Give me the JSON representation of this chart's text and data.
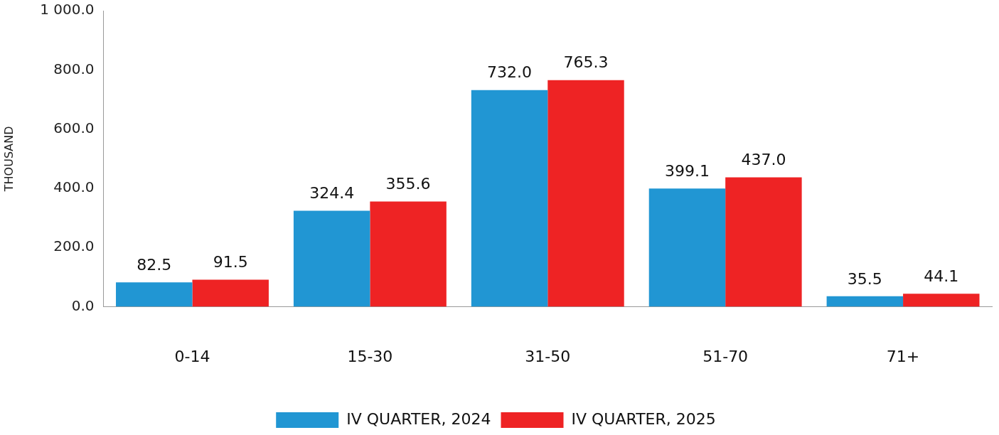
{
  "chart_data": {
    "type": "bar",
    "ylabel": "THOUSAND",
    "categories": [
      "0-14",
      "15-30",
      "31-50",
      "51-70",
      "71+"
    ],
    "series": [
      {
        "name": "IV QUARTER, 2024",
        "color": "#2196d3",
        "values": [
          82.5,
          324.4,
          732.0,
          399.1,
          35.5
        ],
        "value_labels": [
          "82.5",
          "324.4",
          "732.0",
          "399.1",
          "35.5"
        ]
      },
      {
        "name": "IV QUARTER, 2025",
        "color": "#ee2324",
        "values": [
          91.5,
          355.6,
          765.3,
          437.0,
          44.1
        ],
        "value_labels": [
          "91.5",
          "355.6",
          "765.3",
          "437.0",
          "44.1"
        ]
      }
    ],
    "ylim": [
      0,
      1000
    ],
    "yticks": [
      {
        "value": 0,
        "label": "0.0"
      },
      {
        "value": 200,
        "label": "200.0"
      },
      {
        "value": 400,
        "label": "400.0"
      },
      {
        "value": 600,
        "label": "600.0"
      },
      {
        "value": 800,
        "label": "800.0"
      },
      {
        "value": 1000,
        "label": "1 000.0"
      }
    ],
    "grid": false,
    "legend": "bottom"
  }
}
